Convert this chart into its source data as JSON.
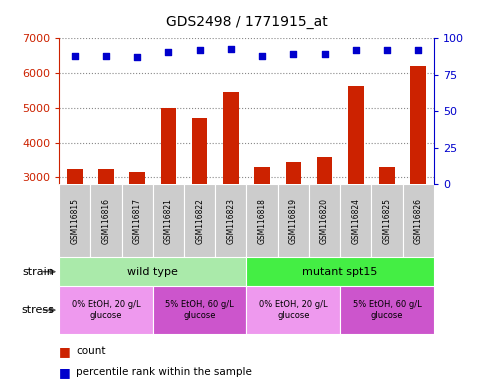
{
  "title": "GDS2498 / 1771915_at",
  "samples": [
    "GSM116815",
    "GSM116816",
    "GSM116817",
    "GSM116821",
    "GSM116822",
    "GSM116823",
    "GSM116818",
    "GSM116819",
    "GSM116820",
    "GSM116824",
    "GSM116825",
    "GSM116826"
  ],
  "counts": [
    3230,
    3240,
    3165,
    5010,
    4720,
    5450,
    3290,
    3450,
    3590,
    5620,
    3300,
    6210
  ],
  "percentiles": [
    88,
    88,
    87,
    91,
    92,
    93,
    88,
    89,
    89,
    92,
    92,
    92
  ],
  "ylim_left": [
    2800,
    7000
  ],
  "ylim_right": [
    0,
    100
  ],
  "yticks_left": [
    3000,
    4000,
    5000,
    6000,
    7000
  ],
  "yticks_right": [
    0,
    25,
    50,
    75,
    100
  ],
  "bar_color": "#cc2200",
  "dot_color": "#0000cc",
  "strain_row": [
    {
      "label": "wild type",
      "start": 0,
      "end": 6,
      "color": "#aaeaaa"
    },
    {
      "label": "mutant spt15",
      "start": 6,
      "end": 12,
      "color": "#44ee44"
    }
  ],
  "stress_row": [
    {
      "label": "0% EtOH, 20 g/L\nglucose",
      "start": 0,
      "end": 3,
      "color": "#ee99ee"
    },
    {
      "label": "5% EtOH, 60 g/L\nglucose",
      "start": 3,
      "end": 6,
      "color": "#cc55cc"
    },
    {
      "label": "0% EtOH, 20 g/L\nglucose",
      "start": 6,
      "end": 9,
      "color": "#ee99ee"
    },
    {
      "label": "5% EtOH, 60 g/L\nglucose",
      "start": 9,
      "end": 12,
      "color": "#cc55cc"
    }
  ],
  "left_axis_color": "#cc2200",
  "right_axis_color": "#0000cc",
  "grid_color": "#888888",
  "xtick_bg_color": "#cccccc",
  "bar_bottom": 2800,
  "bar_width": 0.5
}
